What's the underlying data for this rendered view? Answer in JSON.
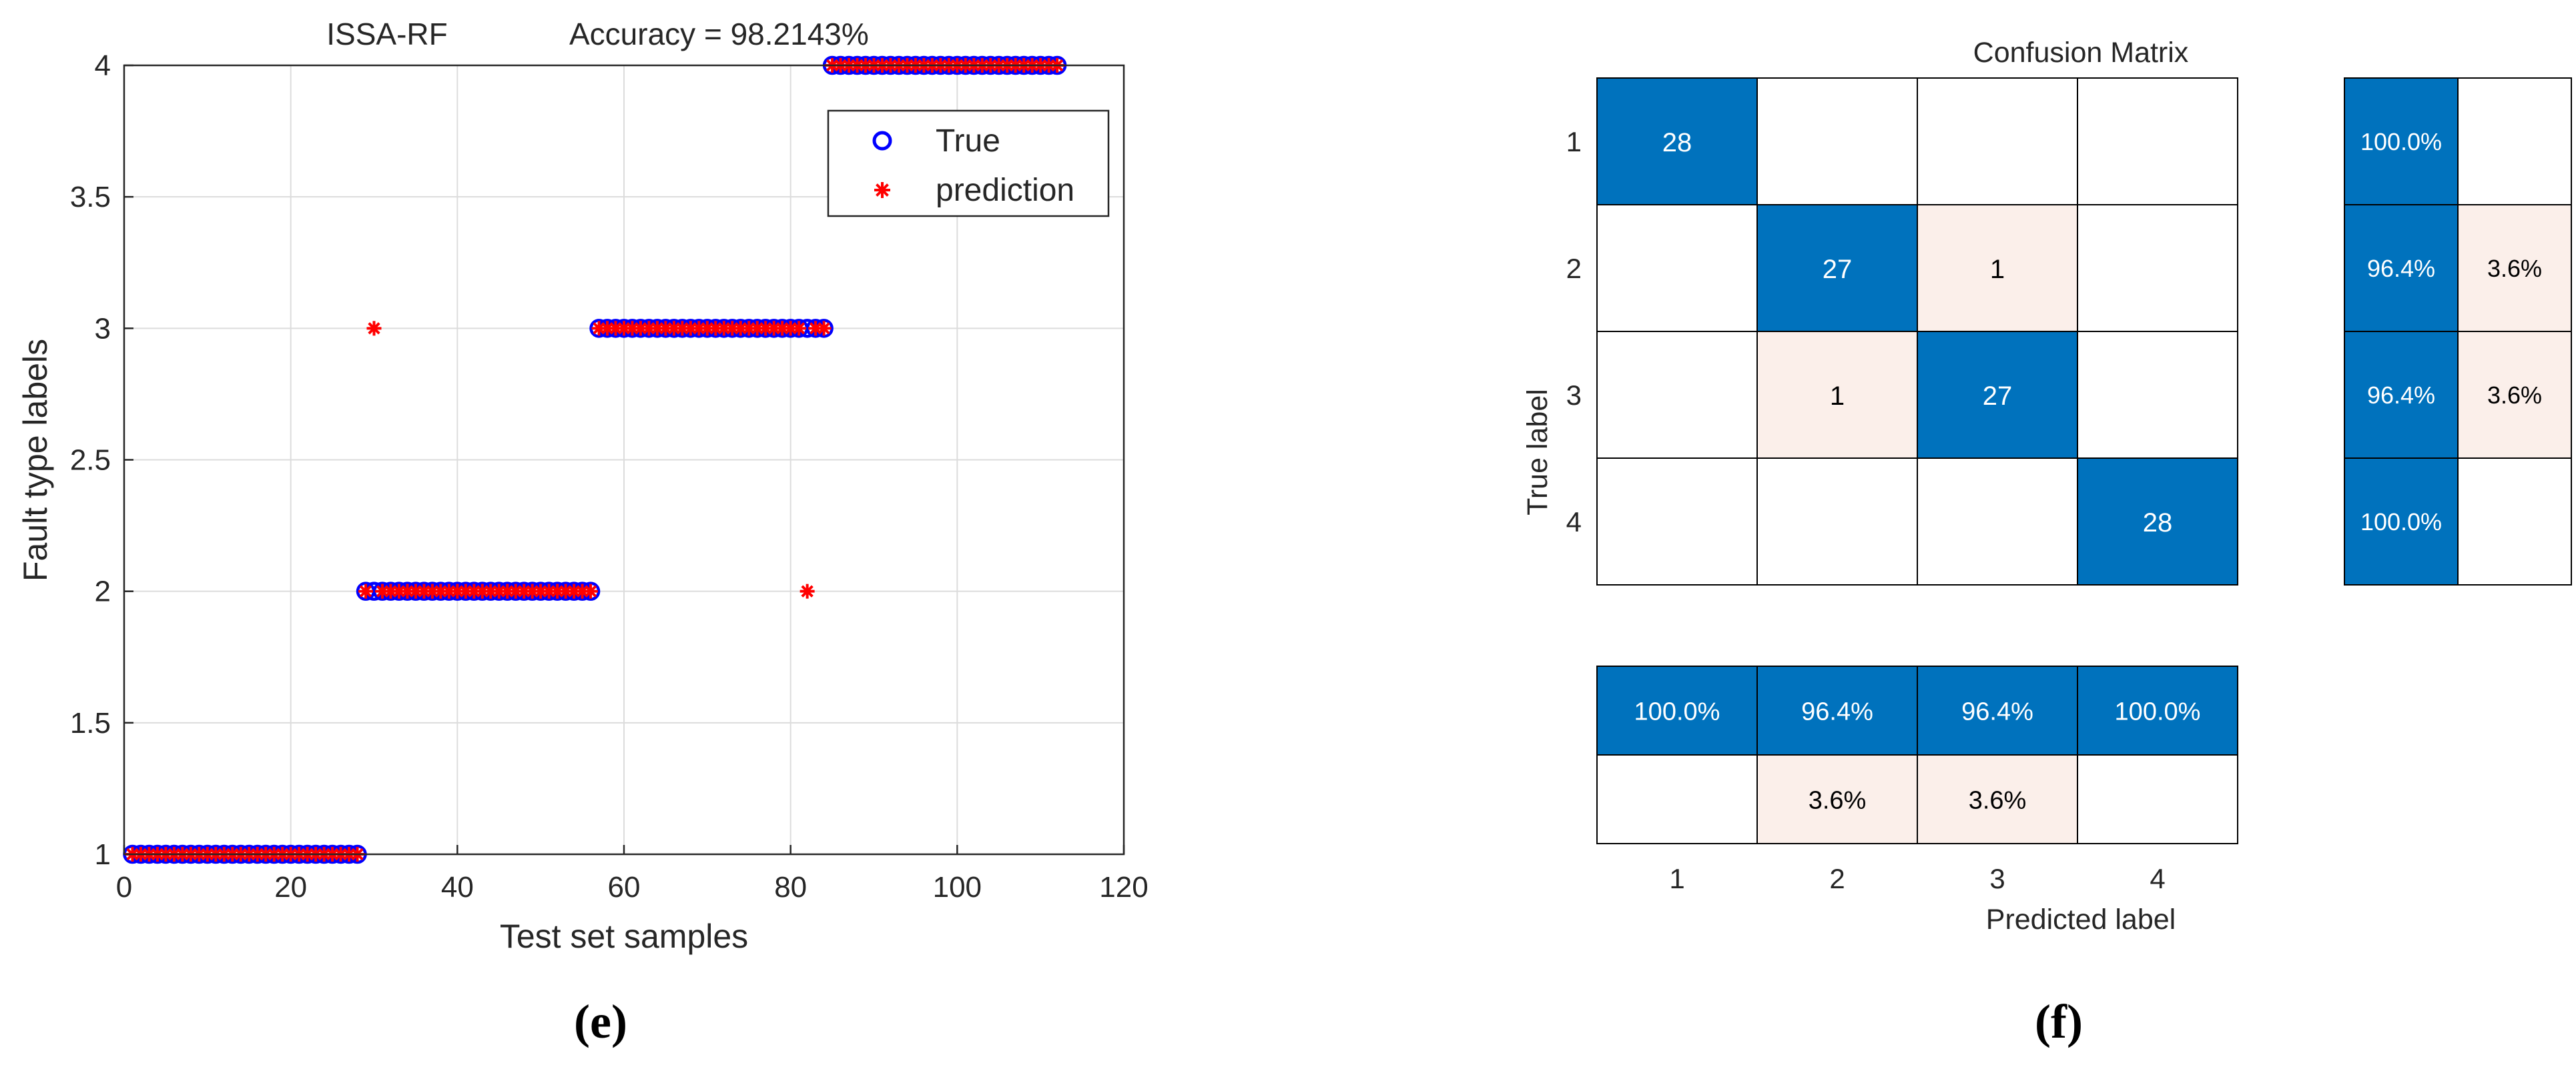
{
  "chart_data": [
    {
      "type": "scatter",
      "panel_caption": "(e)",
      "title_left": "ISSA-RF",
      "title_right": "Accuracy = 98.2143%",
      "xlabel": "Test set samples",
      "ylabel": "Fault type labels",
      "xlim": [
        0,
        120
      ],
      "ylim": [
        1,
        4
      ],
      "xticks": [
        0,
        20,
        40,
        60,
        80,
        100,
        120
      ],
      "yticks": [
        1,
        1.5,
        2,
        2.5,
        3,
        3.5,
        4
      ],
      "ytick_labels": [
        "1",
        "1.5",
        "2",
        "2.5",
        "3",
        "3.5",
        "4"
      ],
      "grid": true,
      "legend": {
        "position": "top-right",
        "entries": [
          "True",
          "prediction"
        ]
      },
      "colors": {
        "true": "#0000ff",
        "prediction": "#ff0000"
      },
      "series": [
        {
          "name": "True",
          "marker": "circle",
          "segments": [
            {
              "x_from": 1,
              "x_to": 28,
              "y": 1
            },
            {
              "x_from": 29,
              "x_to": 56,
              "y": 2
            },
            {
              "x_from": 57,
              "x_to": 84,
              "y": 3
            },
            {
              "x_from": 85,
              "x_to": 112,
              "y": 4
            }
          ]
        },
        {
          "name": "prediction",
          "marker": "asterisk",
          "segments": [
            {
              "x_from": 1,
              "x_to": 28,
              "y": 1
            },
            {
              "x_from": 29,
              "x_to": 29,
              "y": 2
            },
            {
              "x_from": 30,
              "x_to": 30,
              "y": 3
            },
            {
              "x_from": 31,
              "x_to": 56,
              "y": 2
            },
            {
              "x_from": 57,
              "x_to": 81,
              "y": 3
            },
            {
              "x_from": 82,
              "x_to": 82,
              "y": 2
            },
            {
              "x_from": 83,
              "x_to": 84,
              "y": 3
            },
            {
              "x_from": 85,
              "x_to": 112,
              "y": 4
            }
          ]
        }
      ]
    },
    {
      "type": "heatmap",
      "panel_caption": "(f)",
      "title": "Confusion Matrix",
      "xlabel": "Predicted label",
      "ylabel": "True label",
      "classes": [
        "1",
        "2",
        "3",
        "4"
      ],
      "matrix": [
        [
          28,
          0,
          0,
          0
        ],
        [
          0,
          27,
          1,
          0
        ],
        [
          0,
          1,
          27,
          0
        ],
        [
          0,
          0,
          0,
          28
        ]
      ],
      "row_summary": [
        [
          "100.0%",
          ""
        ],
        [
          "96.4%",
          "3.6%"
        ],
        [
          "96.4%",
          "3.6%"
        ],
        [
          "100.0%",
          ""
        ]
      ],
      "column_summary": [
        [
          "100.0%",
          "96.4%",
          "96.4%",
          "100.0%"
        ],
        [
          "",
          "3.6%",
          "3.6%",
          ""
        ]
      ],
      "colors": {
        "correct": "#0072bd",
        "error": "#fbefea",
        "empty": "#ffffff",
        "grid": "#000000",
        "correct_text": "#ffffff",
        "error_text": "#000000"
      }
    }
  ]
}
